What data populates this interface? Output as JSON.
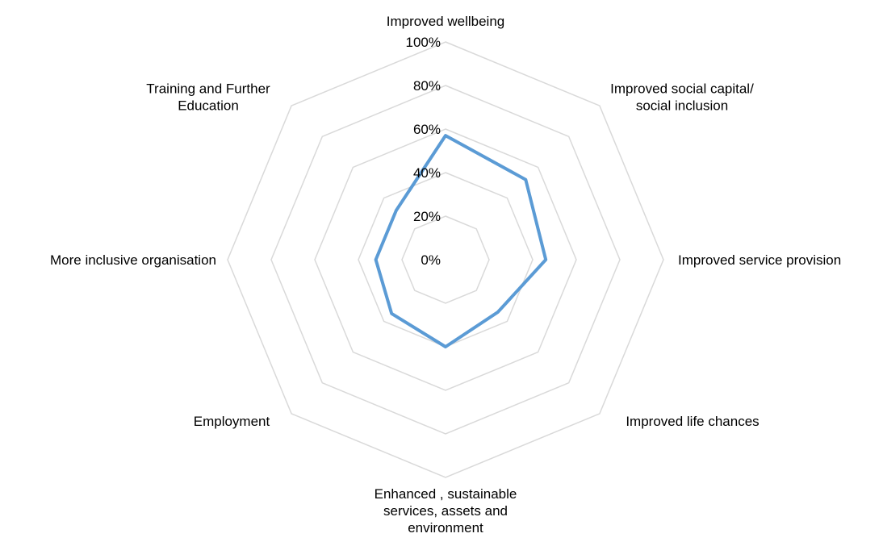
{
  "chart_data": {
    "type": "radar",
    "categories": [
      "Improved wellbeing",
      "Improved social capital/\nsocial inclusion",
      "Improved service provision",
      "Improved life chances",
      "Enhanced , sustainable\nservices, assets and\nenvironment",
      "Employment",
      "More inclusive organisation",
      "Training and Further\nEducation"
    ],
    "series": [
      {
        "values": [
          57,
          52,
          46,
          34,
          40,
          35,
          32,
          32
        ]
      }
    ],
    "ticks": [
      "0%",
      "20%",
      "40%",
      "60%",
      "80%",
      "100%"
    ],
    "range": [
      0,
      100
    ],
    "grid": true,
    "legend": "none",
    "colors": {
      "series": "#5b9bd5",
      "grid": "#d9d9d9",
      "text": "#000000"
    }
  }
}
